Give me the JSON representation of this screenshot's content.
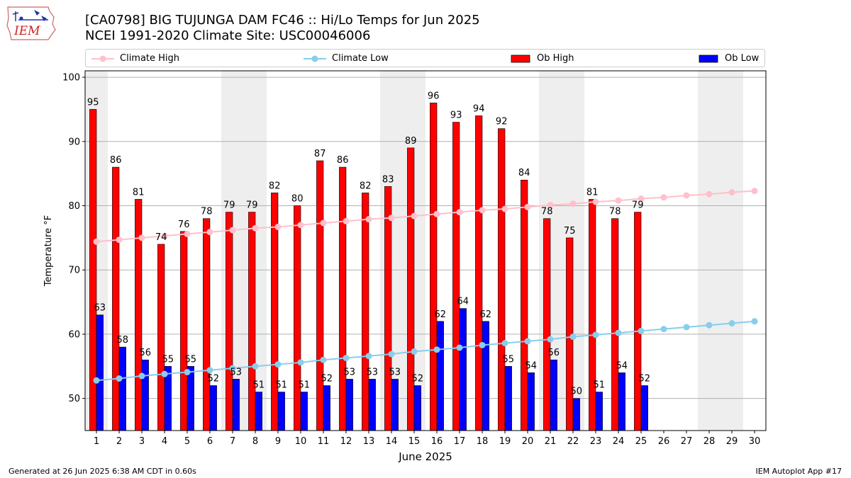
{
  "header": {
    "title_line1": "[CA0798] BIG TUJUNGA DAM FC46 :: Hi/Lo Temps for Jun 2025",
    "title_line2": "NCEI 1991-2020 Climate Site: USC00046006",
    "logo_text": "IEM"
  },
  "legend": {
    "climate_high": "Climate High",
    "climate_low": "Climate Low",
    "ob_high": "Ob High",
    "ob_low": "Ob Low"
  },
  "footer": {
    "left": "Generated at 26 Jun 2025 6:38 AM CDT in 0.60s",
    "right": "IEM Autoplot App #17"
  },
  "colors": {
    "ob_high": "#ff0000",
    "ob_low": "#0000ff",
    "climate_high": "#ffc0cb",
    "climate_low": "#87ceeb",
    "weekend_shade": "#eeeeee",
    "grid": "#b0b0b0"
  },
  "chart_data": {
    "type": "bar",
    "xlabel": "June 2025",
    "ylabel": "Temperature °F",
    "xlim": [
      0.5,
      30.5
    ],
    "ylim": [
      45,
      101
    ],
    "yticks": [
      50,
      60,
      70,
      80,
      90,
      100
    ],
    "grid": "horizontal",
    "legend_position": "top",
    "days": [
      1,
      2,
      3,
      4,
      5,
      6,
      7,
      8,
      9,
      10,
      11,
      12,
      13,
      14,
      15,
      16,
      17,
      18,
      19,
      20,
      21,
      22,
      23,
      24,
      25,
      26,
      27,
      28,
      29,
      30
    ],
    "weekend_days": [
      1,
      7,
      8,
      14,
      15,
      21,
      22,
      28,
      29
    ],
    "ob_high": [
      95,
      86,
      81,
      74,
      76,
      78,
      79,
      79,
      82,
      80,
      87,
      86,
      82,
      83,
      89,
      96,
      93,
      94,
      92,
      84,
      78,
      75,
      81,
      78,
      79
    ],
    "ob_low": [
      63,
      58,
      56,
      55,
      55,
      52,
      53,
      51,
      51,
      51,
      52,
      53,
      53,
      53,
      52,
      62,
      64,
      62,
      55,
      54,
      56,
      50,
      51,
      54,
      52
    ],
    "climate_high": [
      74.4,
      74.7,
      75.0,
      75.3,
      75.6,
      75.9,
      76.2,
      76.5,
      76.7,
      77.0,
      77.3,
      77.6,
      77.9,
      78.1,
      78.4,
      78.7,
      79.0,
      79.3,
      79.5,
      79.8,
      80.1,
      80.3,
      80.6,
      80.8,
      81.1,
      81.3,
      81.6,
      81.8,
      82.1,
      82.3
    ],
    "climate_low": [
      52.8,
      53.1,
      53.5,
      53.8,
      54.1,
      54.4,
      54.7,
      55.0,
      55.3,
      55.6,
      56.0,
      56.3,
      56.6,
      56.9,
      57.3,
      57.6,
      57.9,
      58.3,
      58.6,
      58.9,
      59.2,
      59.6,
      59.9,
      60.2,
      60.5,
      60.8,
      61.1,
      61.4,
      61.7,
      62.0
    ]
  }
}
